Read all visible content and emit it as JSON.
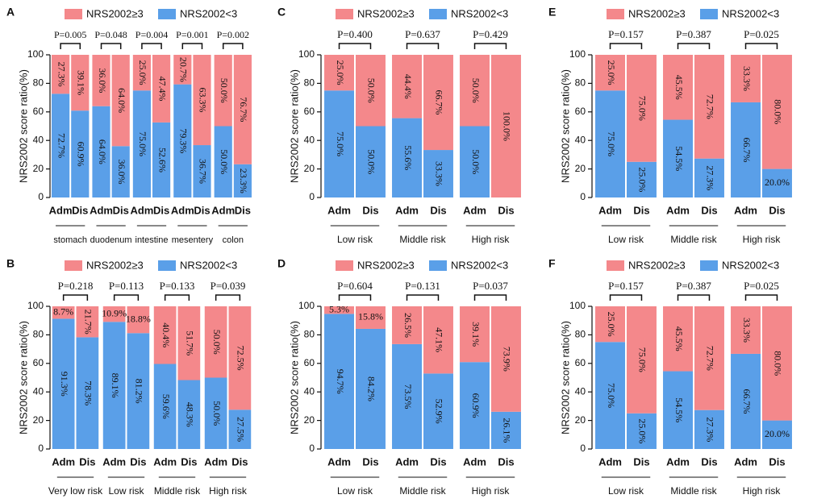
{
  "chart_data": [
    {
      "type": "bar",
      "stacked": true,
      "panel_label": "A",
      "ylabel": "NRS2002 score ratio(%)",
      "categories": [
        "Adm",
        "Dis",
        "Adm",
        "Dis",
        "Adm",
        "Dis",
        "Adm",
        "Dis",
        "Adm",
        "Dis"
      ],
      "groups": [
        "stomach",
        "duodenum",
        "intestine",
        "mesentery",
        "colon"
      ],
      "annotations": [
        "P=0.005",
        "P=0.048",
        "P=0.004",
        "P=0.001",
        "P=0.002"
      ],
      "series": [
        {
          "name": "NRS2002≥3",
          "color": "#f4888b",
          "values": [
            27.3,
            39.1,
            36.0,
            64.0,
            25.0,
            47.4,
            20.7,
            63.3,
            50.0,
            76.7
          ],
          "value_labels": [
            "27.3%",
            "39.1%",
            "36.0%",
            "64.0%",
            "25.0%",
            "47.4%",
            "20.7%",
            "63.3%",
            "50.0%",
            "76.7%"
          ]
        },
        {
          "name": "NRS2002<3",
          "color": "#5a9fe8",
          "values": [
            72.7,
            60.9,
            64.0,
            36.0,
            75.0,
            52.6,
            79.3,
            36.7,
            50.0,
            23.3
          ],
          "value_labels": [
            "72.7%",
            "60.9%",
            "64.0%",
            "36.0%",
            "75.0%",
            "52.6%",
            "79.3%",
            "36.7%",
            "50.0%",
            "23.3%"
          ]
        }
      ],
      "ylim": [
        0,
        100
      ],
      "yticks": [
        0,
        20,
        40,
        60,
        80,
        100
      ]
    },
    {
      "type": "bar",
      "stacked": true,
      "panel_label": "B",
      "ylabel": "NRS2002 score ratio(%)",
      "categories": [
        "Adm",
        "Dis",
        "Adm",
        "Dis",
        "Adm",
        "Dis",
        "Adm",
        "Dis"
      ],
      "groups": [
        "Very low risk",
        "Low risk",
        "Middle risk",
        "High risk"
      ],
      "annotations": [
        "P=0.218",
        "P=0.113",
        "P=0.133",
        "P=0.039"
      ],
      "series": [
        {
          "name": "NRS2002≥3",
          "color": "#f4888b",
          "values": [
            8.7,
            21.7,
            10.9,
            18.8,
            40.4,
            51.7,
            50.0,
            72.5
          ],
          "value_labels": [
            "8.7%",
            "21.7%",
            "10.9%",
            "18.8%",
            "40.4%",
            "51.7%",
            "50.0%",
            "72.5%"
          ]
        },
        {
          "name": "NRS2002<3",
          "color": "#5a9fe8",
          "values": [
            91.3,
            78.3,
            89.1,
            81.2,
            59.6,
            48.3,
            50.0,
            27.5
          ],
          "value_labels": [
            "91.3%",
            "78.3%",
            "89.1%",
            "81.2%",
            "59.6%",
            "48.3%",
            "50.0%",
            "27.5%"
          ]
        }
      ],
      "ylim": [
        0,
        100
      ],
      "yticks": [
        0,
        20,
        40,
        60,
        80,
        100
      ]
    },
    {
      "type": "bar",
      "stacked": true,
      "panel_label": "C",
      "ylabel": "NRS2002 score ratio(%)",
      "categories": [
        "Adm",
        "Dis",
        "Adm",
        "Dis",
        "Adm",
        "Dis"
      ],
      "groups": [
        "Low risk",
        "Middle risk",
        "High risk"
      ],
      "annotations": [
        "P=0.400",
        "P=0.637",
        "P=0.429"
      ],
      "series": [
        {
          "name": "NRS2002≥3",
          "color": "#f4888b",
          "values": [
            25.0,
            50.0,
            44.4,
            66.7,
            50.0,
            100.0
          ],
          "value_labels": [
            "25.0%",
            "50.0%",
            "44.4%",
            "66.7%",
            "50.0%",
            "100.0%"
          ]
        },
        {
          "name": "NRS2002<3",
          "color": "#5a9fe8",
          "values": [
            75.0,
            50.0,
            55.6,
            33.3,
            50.0,
            0
          ],
          "value_labels": [
            "75.0%",
            "50.0%",
            "55.6%",
            "33.3%",
            "50.0%",
            null
          ]
        }
      ],
      "ylim": [
        0,
        100
      ],
      "yticks": [
        0,
        20,
        40,
        60,
        80,
        100
      ]
    },
    {
      "type": "bar",
      "stacked": true,
      "panel_label": "D",
      "ylabel": "NRS2002 score ratio(%)",
      "categories": [
        "Adm",
        "Dis",
        "Adm",
        "Dis",
        "Adm",
        "Dis"
      ],
      "groups": [
        "Low risk",
        "Middle risk",
        "High risk"
      ],
      "annotations": [
        "P=0.604",
        "P=0.131",
        "P=0.037"
      ],
      "series": [
        {
          "name": "NRS2002≥3",
          "color": "#f4888b",
          "values": [
            5.3,
            15.8,
            26.5,
            47.1,
            39.1,
            73.9
          ],
          "value_labels": [
            "5.3%",
            "15.8%",
            "26.5%",
            "47.1%",
            "39.1%",
            "73.9%"
          ]
        },
        {
          "name": "NRS2002<3",
          "color": "#5a9fe8",
          "values": [
            94.7,
            84.2,
            73.5,
            52.9,
            60.9,
            26.1
          ],
          "value_labels": [
            "94.7%",
            "84.2%",
            "73.5%",
            "52.9%",
            "60.9%",
            "26.1%"
          ]
        }
      ],
      "ylim": [
        0,
        100
      ],
      "yticks": [
        0,
        20,
        40,
        60,
        80,
        100
      ]
    },
    {
      "type": "bar",
      "stacked": true,
      "panel_label": "E",
      "ylabel": "NRS2002 score ratio(%)",
      "categories": [
        "Adm",
        "Dis",
        "Adm",
        "Dis",
        "Adm",
        "Dis"
      ],
      "groups": [
        "Low risk",
        "Middle risk",
        "High risk"
      ],
      "annotations": [
        "P=0.157",
        "P=0.387",
        "P=0.025"
      ],
      "series": [
        {
          "name": "NRS2002≥3",
          "color": "#f4888b",
          "values": [
            25.0,
            75.0,
            45.5,
            72.7,
            33.3,
            80.0
          ],
          "value_labels": [
            "25.0%",
            "75.0%",
            "45.5%",
            "72.7%",
            "33.3%",
            "80.0%"
          ]
        },
        {
          "name": "NRS2002<3",
          "color": "#5a9fe8",
          "values": [
            75.0,
            25.0,
            54.5,
            27.3,
            66.7,
            20.0
          ],
          "value_labels": [
            "75.0%",
            "25.0%",
            "54.5%",
            "27.3%",
            "66.7%",
            "20.0%"
          ]
        }
      ],
      "ylim": [
        0,
        100
      ],
      "yticks": [
        0,
        20,
        40,
        60,
        80,
        100
      ]
    },
    {
      "type": "bar",
      "stacked": true,
      "panel_label": "F",
      "ylabel": "NRS2002 score ratio(%)",
      "categories": [
        "Adm",
        "Dis",
        "Adm",
        "Dis",
        "Adm",
        "Dis"
      ],
      "groups": [
        "Low risk",
        "Middle risk",
        "High risk"
      ],
      "annotations": [
        "P=0.157",
        "P=0.387",
        "P=0.025"
      ],
      "series": [
        {
          "name": "NRS2002≥3",
          "color": "#f4888b",
          "values": [
            25.0,
            75.0,
            45.5,
            72.7,
            33.3,
            80.0
          ],
          "value_labels": [
            "25.0%",
            "75.0%",
            "45.5%",
            "72.7%",
            "33.3%",
            "80.0%"
          ]
        },
        {
          "name": "NRS2002<3",
          "color": "#5a9fe8",
          "values": [
            75.0,
            25.0,
            54.5,
            27.3,
            66.7,
            20.0
          ],
          "value_labels": [
            "75.0%",
            "25.0%",
            "54.5%",
            "27.3%",
            "66.7%",
            "20.0%"
          ]
        }
      ],
      "ylim": [
        0,
        100
      ],
      "yticks": [
        0,
        20,
        40,
        60,
        80,
        100
      ]
    }
  ]
}
